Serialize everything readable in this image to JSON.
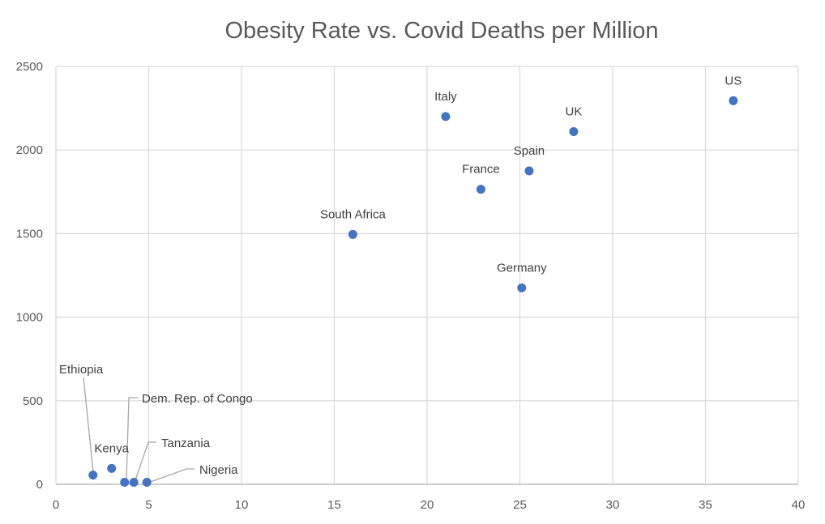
{
  "chart_data": {
    "type": "scatter",
    "title": "Obesity Rate vs. Covid Deaths per Million",
    "xlabel": "",
    "ylabel": "",
    "xlim": [
      0,
      40
    ],
    "ylim": [
      0,
      2500
    ],
    "xticks": [
      0,
      5,
      10,
      15,
      20,
      25,
      30,
      35,
      40
    ],
    "yticks": [
      0,
      500,
      1000,
      1500,
      2000,
      2500
    ],
    "grid": true,
    "legend": "none",
    "marker_color": "#4472C4",
    "grid_color": "#D9D9D9",
    "points": [
      {
        "label": "US",
        "x": 36.5,
        "y": 2295
      },
      {
        "label": "Italy",
        "x": 21.0,
        "y": 2200
      },
      {
        "label": "UK",
        "x": 27.9,
        "y": 2110
      },
      {
        "label": "Spain",
        "x": 25.5,
        "y": 1875
      },
      {
        "label": "France",
        "x": 22.9,
        "y": 1765
      },
      {
        "label": "South Africa",
        "x": 16.0,
        "y": 1495
      },
      {
        "label": "Germany",
        "x": 25.1,
        "y": 1175
      },
      {
        "label": "Ethiopia",
        "x": 2.0,
        "y": 55
      },
      {
        "label": "Kenya",
        "x": 3.0,
        "y": 95
      },
      {
        "label": "Dem. Rep. of Congo",
        "x": 3.7,
        "y": 12
      },
      {
        "label": "Tanzania",
        "x": 4.2,
        "y": 12
      },
      {
        "label": "Nigeria",
        "x": 4.9,
        "y": 12
      }
    ]
  }
}
